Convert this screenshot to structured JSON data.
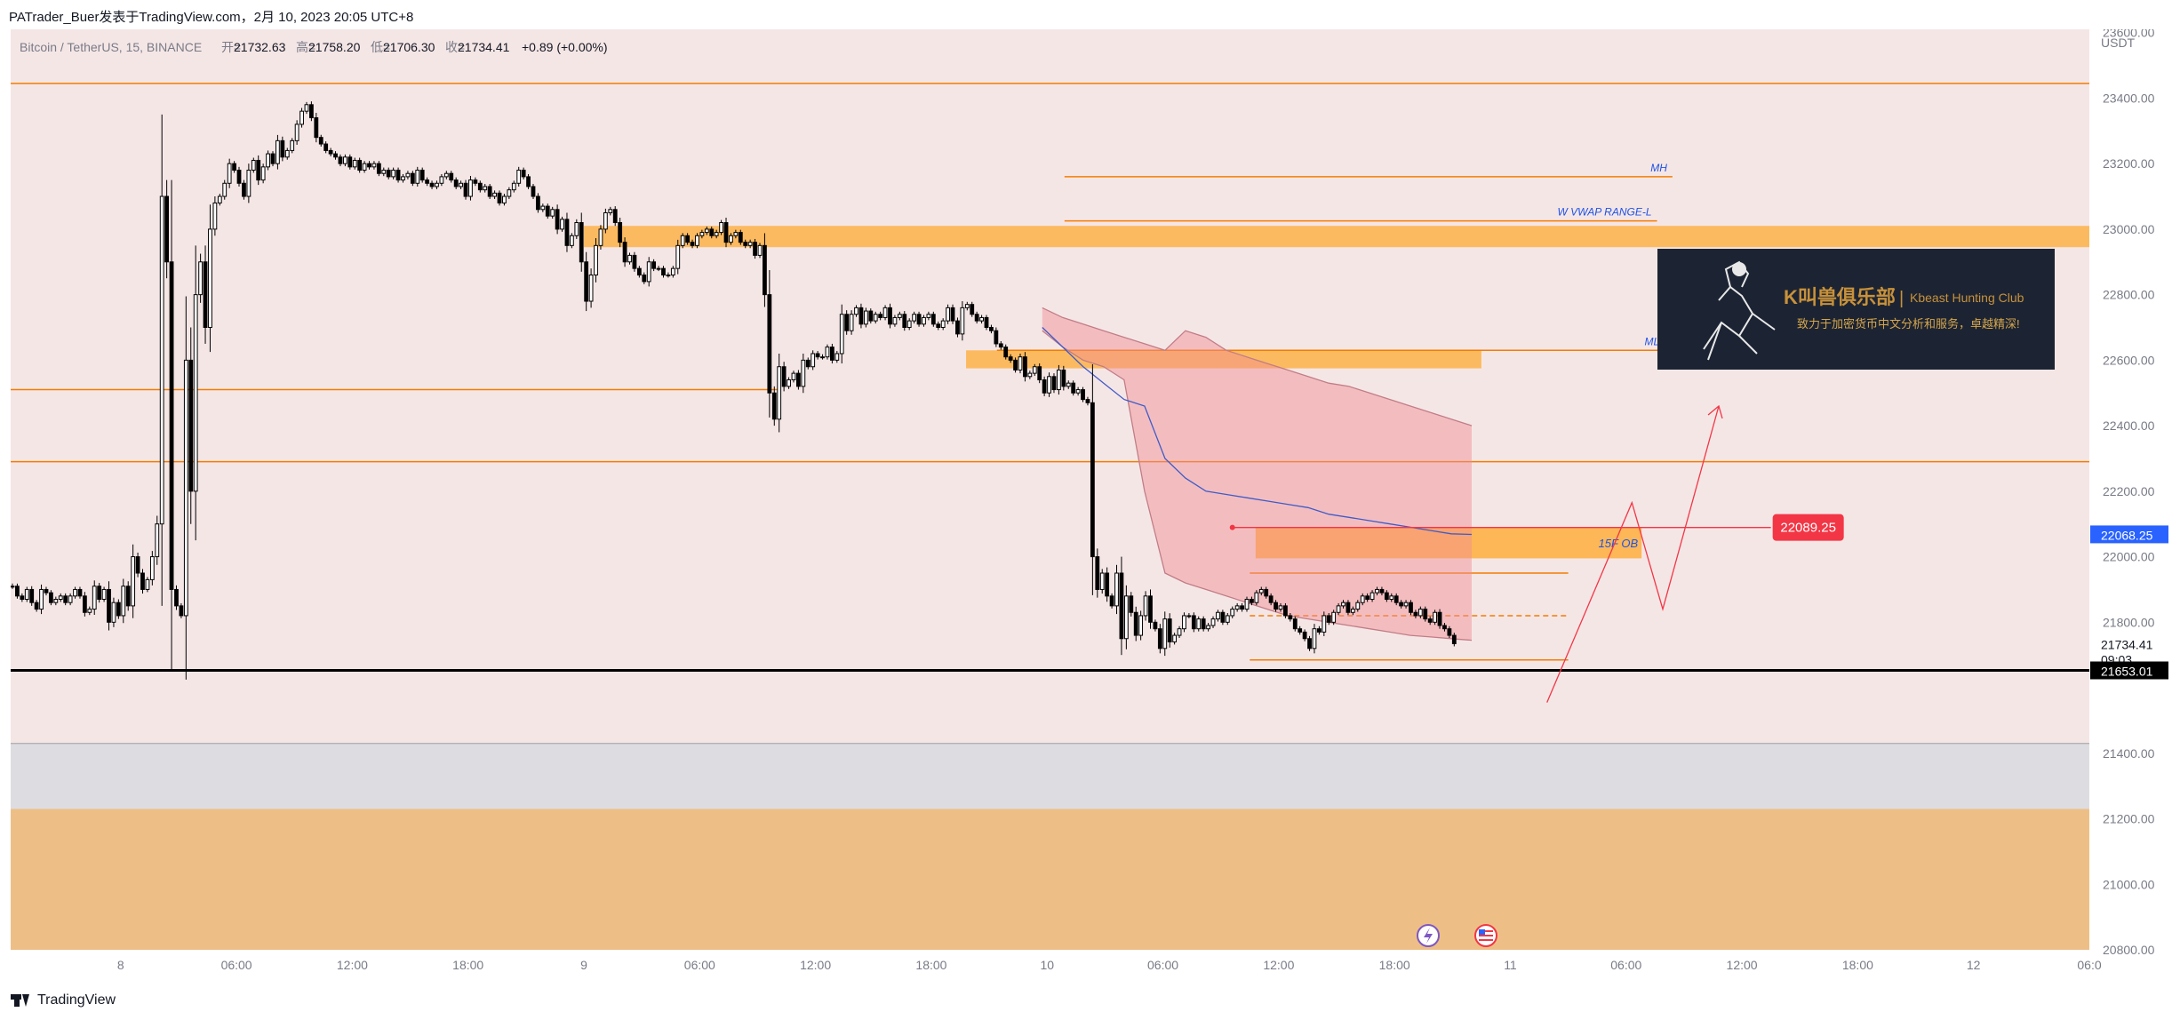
{
  "header": {
    "publisher": "PATrader_Buer发表于TradingView.com，2月 10, 2023 20:05 UTC+8"
  },
  "footer": {
    "brand": "TradingView"
  },
  "chart_data": {
    "type": "candlestick",
    "legend": {
      "symbol": "Bitcoin / TetherUS, 15, BINANCE",
      "open_label": "开=",
      "open": "21732.63",
      "high_label": "高=",
      "high": "21758.20",
      "low_label": "低=",
      "low": "21706.30",
      "close_label": "收=",
      "close": "21734.41",
      "change": "+0.89 (+0.00%)"
    },
    "currency": "USDT",
    "y_ticks": [
      "23600.00",
      "23400.00",
      "23200.00",
      "23000.00",
      "22800.00",
      "22600.00",
      "22400.00",
      "22200.00",
      "22000.00",
      "21800.00",
      "21400.00",
      "21200.00",
      "21000.00",
      "20800.00"
    ],
    "ylim": [
      20800,
      23610
    ],
    "x_ticks": [
      "8",
      "06:00",
      "12:00",
      "18:00",
      "9",
      "06:00",
      "12:00",
      "18:00",
      "10",
      "06:00",
      "12:00",
      "18:00",
      "11",
      "06:00",
      "12:00",
      "18:00",
      "12",
      "06:0"
    ],
    "x_tick_hours": [
      0,
      6,
      12,
      18,
      24,
      30,
      36,
      42,
      48,
      54,
      60,
      66,
      72,
      78,
      84,
      90,
      96,
      102
    ],
    "x_range_hours": [
      -5.7,
      102
    ],
    "price_labels": [
      {
        "value": 22068.25,
        "text": "22068.25",
        "color": "#2962ff",
        "text_color": "#ffffff"
      },
      {
        "value": 21734.41,
        "text": "21734.41",
        "sub": "09:03",
        "color": "#ffffff",
        "text_color": "#131722"
      },
      {
        "value": 21653.01,
        "text": "21653.01",
        "color": "#000000",
        "text_color": "#ffffff"
      }
    ],
    "horizontal_lines": [
      {
        "value": 23445,
        "color": "#f57c00",
        "width": 1.5
      },
      {
        "value": 22290,
        "color": "#f57c00",
        "width": 1.5
      },
      {
        "value": 21653.01,
        "color": "#000000",
        "width": 3
      },
      {
        "value": 21430,
        "color": "#9e9e9e",
        "width": 1
      }
    ],
    "segments": [
      {
        "x1": -5.7,
        "x2": 34.1,
        "value": 22510,
        "color": "#f57c00"
      },
      {
        "x1": 48.9,
        "x2": 80.4,
        "value": 23160,
        "color": "#f57c00",
        "label": "MH"
      },
      {
        "x1": 48.9,
        "x2": 79.6,
        "value": 23025,
        "color": "#f57c00",
        "label": "W VWAP RANGE-L"
      },
      {
        "x1": 45.4,
        "x2": 80.0,
        "value": 22630,
        "color": "#f57c00",
        "label": "ML"
      },
      {
        "x1": 58.5,
        "x2": 75.0,
        "value": 21950,
        "color": "#f57c00"
      },
      {
        "x1": 58.5,
        "x2": 75.0,
        "value": 21820,
        "color": "#f57c00",
        "dashed": true
      },
      {
        "x1": 58.5,
        "x2": 75.0,
        "value": 21685,
        "color": "#f57c00"
      }
    ],
    "zones": [
      {
        "x1": 24.0,
        "x2": 102,
        "y_low": 22945,
        "y_high": 23010,
        "color": "#ffa726",
        "opacity": 0.7
      },
      {
        "x1": 43.8,
        "x2": 70.5,
        "y_low": 22575,
        "y_high": 22630,
        "color": "#ffa726",
        "opacity": 0.7
      },
      {
        "x1": 58.8,
        "x2": 78.8,
        "y_low": 21995,
        "y_high": 22090,
        "color": "#ffa726",
        "opacity": 0.75,
        "label": "15F OB"
      },
      {
        "x1": -5.7,
        "x2": 102,
        "y_low": 21230,
        "y_high": 21430,
        "color": "#d7d9de",
        "opacity": 0.8
      },
      {
        "x1": -5.7,
        "x2": 102,
        "y_low": 20800,
        "y_high": 21230,
        "color": "#edbf86",
        "opacity": 1
      }
    ],
    "marker_line": {
      "x1": 57.6,
      "x2": 85.5,
      "value": 22089.25,
      "label": "22089.25"
    },
    "projection": [
      [
        73.9,
        21555
      ],
      [
        78.3,
        22165
      ],
      [
        79.9,
        21840
      ],
      [
        82.8,
        22460
      ]
    ],
    "banner": {
      "title": "K叫兽俱乐部",
      "subtitle": "Kbeast Hunting Club",
      "tagline": "致力于加密货币中文分析和服务，卓越精深!"
    },
    "closes": [
      21910,
      21880,
      21870,
      21900,
      21860,
      21840,
      21900,
      21890,
      21860,
      21870,
      21880,
      21860,
      21880,
      21900,
      21880,
      21830,
      21840,
      21910,
      21870,
      21900,
      21800,
      21860,
      21820,
      21910,
      21850,
      22000,
      21950,
      21900,
      21930,
      22000,
      22100,
      23100,
      22900,
      21900,
      21850,
      21820,
      22600,
      22200,
      22800,
      22900,
      22700,
      23000,
      23080,
      23100,
      23140,
      23200,
      23180,
      23140,
      23100,
      23180,
      23210,
      23150,
      23190,
      23230,
      23200,
      23270,
      23220,
      23240,
      23270,
      23320,
      23360,
      23380,
      23340,
      23280,
      23260,
      23240,
      23230,
      23220,
      23200,
      23220,
      23190,
      23210,
      23180,
      23200,
      23190,
      23200,
      23170,
      23180,
      23160,
      23180,
      23150,
      23160,
      23170,
      23140,
      23180,
      23150,
      23140,
      23130,
      23140,
      23160,
      23170,
      23150,
      23130,
      23140,
      23100,
      23150,
      23140,
      23120,
      23130,
      23100,
      23110,
      23080,
      23100,
      23120,
      23140,
      23180,
      23160,
      23130,
      23100,
      23060,
      23070,
      23040,
      23060,
      23000,
      23030,
      22950,
      22980,
      23020,
      22900,
      22780,
      22860,
      22950,
      23000,
      23050,
      23060,
      23020,
      22960,
      22900,
      22920,
      22880,
      22860,
      22840,
      22900,
      22880,
      22880,
      22860,
      22860,
      22880,
      22950,
      22980,
      22960,
      22950,
      22980,
      22990,
      23000,
      22980,
      22990,
      23020,
      22960,
      22980,
      22990,
      22960,
      22950,
      22960,
      22920,
      22950,
      22800,
      22500,
      22420,
      22580,
      22520,
      22540,
      22560,
      22520,
      22600,
      22580,
      22620,
      22610,
      22610,
      22640,
      22600,
      22620,
      22740,
      22690,
      22740,
      22760,
      22710,
      22750,
      22720,
      22740,
      22730,
      22760,
      22710,
      22730,
      22740,
      22700,
      22720,
      22740,
      22710,
      22730,
      22740,
      22710,
      22700,
      22720,
      22760,
      22720,
      22680,
      22760,
      22770,
      22740,
      22720,
      22730,
      22700,
      22690,
      22650,
      22640,
      22610,
      22600,
      22570,
      22610,
      22550,
      22560,
      22580,
      22540,
      22500,
      22550,
      22510,
      22570,
      22520,
      22530,
      22500,
      22510,
      22480,
      22470,
      22000,
      21900,
      21950,
      21880,
      21850,
      21950,
      21750,
      21880,
      21830,
      21760,
      21820,
      21880,
      21800,
      21780,
      21720,
      21810,
      21740,
      21760,
      21780,
      21820,
      21820,
      21780,
      21810,
      21780,
      21790,
      21810,
      21830,
      21800,
      21820,
      21840,
      21850,
      21840,
      21870,
      21860,
      21890,
      21900,
      21880,
      21860,
      21840,
      21850,
      21820,
      21810,
      21780,
      21770,
      21750,
      21720,
      21780,
      21770,
      21820,
      21800,
      21830,
      21850,
      21860,
      21830,
      21840,
      21860,
      21880,
      21870,
      21890,
      21900,
      21890,
      21870,
      21880,
      21860,
      21850,
      21860,
      21830,
      21820,
      21840,
      21810,
      21800,
      21830,
      21790,
      21780,
      21760,
      21734.41
    ],
    "vwap_band": {
      "start_hour": 47.75,
      "end_hour": 70.0,
      "upper": [
        22760,
        22730,
        22710,
        22690,
        22670,
        22650,
        22630,
        22690,
        22670,
        22630,
        22610,
        22590,
        22570,
        22550,
        22530,
        22520,
        22500,
        22480,
        22460,
        22440,
        22420,
        22400
      ],
      "middle": [
        22700,
        22640,
        22580,
        22530,
        22480,
        22460,
        22300,
        22240,
        22200,
        22190,
        22180,
        22170,
        22160,
        22150,
        22130,
        22120,
        22110,
        22100,
        22090,
        22080,
        22070,
        22068
      ],
      "lower": [
        22690,
        22640,
        22600,
        22580,
        22540,
        22200,
        21950,
        21920,
        21900,
        21880,
        21860,
        21840,
        21820,
        21810,
        21800,
        21790,
        21780,
        21770,
        21760,
        21755,
        21750,
        21745
      ]
    }
  }
}
